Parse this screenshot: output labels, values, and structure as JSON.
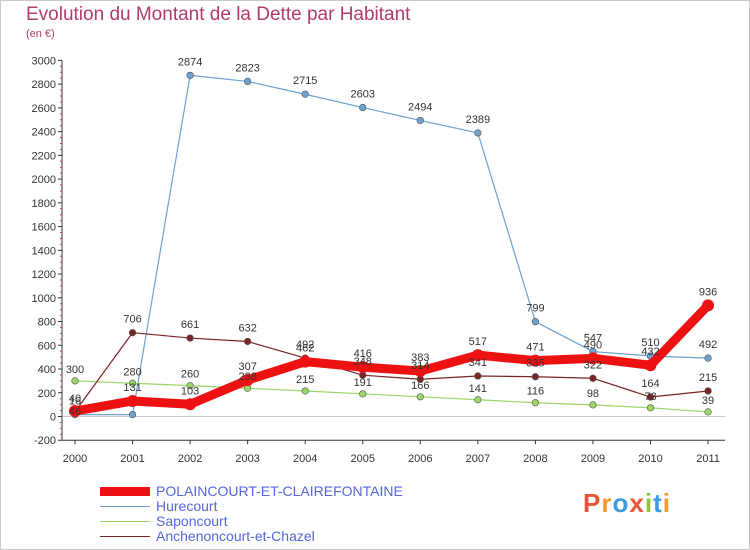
{
  "title": "Evolution du Montant de la Dette par Habitant",
  "subtitle": "(en €)",
  "logo": {
    "text": "Proxiti",
    "colors": [
      "#e8563a",
      "#f39a2b",
      "#3b9be0",
      "#e8563a",
      "#8cc63f",
      "#3b9be0",
      "#f39a2b"
    ]
  },
  "chart_data": {
    "type": "line",
    "title": "Evolution du Montant de la Dette par Habitant",
    "ylabel": "(en €)",
    "xlabel": "",
    "ylim": [
      -200,
      3000
    ],
    "yticks": [
      -200,
      0,
      200,
      400,
      600,
      800,
      1000,
      1200,
      1400,
      1600,
      1800,
      2000,
      2200,
      2400,
      2600,
      2800,
      3000
    ],
    "grid": false,
    "x": [
      "2000",
      "2001",
      "2002",
      "2003",
      "2004",
      "2005",
      "2006",
      "2007",
      "2008",
      "2009",
      "2010",
      "2011"
    ],
    "series": [
      {
        "name": "POLAINCOURT-ET-CLAIREFONTAINE",
        "color": "#ee1111",
        "values": [
          46,
          131,
          103,
          307,
          462,
          416,
          383,
          517,
          471,
          490,
          432,
          936
        ],
        "labels": [
          "46",
          "131",
          "103",
          "307",
          "462",
          "416",
          "383",
          "517",
          "471",
          "490",
          "432",
          "936"
        ]
      },
      {
        "name": "Hurecourt",
        "color": "#6ea2cf",
        "values": [
          16,
          16,
          2874,
          2823,
          2715,
          2603,
          2494,
          2389,
          799,
          547,
          510,
          492
        ],
        "labels": [
          "16",
          "",
          "2874",
          "2823",
          "2715",
          "2603",
          "2494",
          "2389",
          "799",
          "547",
          "510",
          "492"
        ]
      },
      {
        "name": "Saponcourt",
        "color": "#9ad668",
        "values": [
          300,
          280,
          260,
          238,
          215,
          191,
          166,
          141,
          116,
          98,
          73,
          39
        ],
        "labels": [
          "300",
          "280",
          "260",
          "238",
          "215",
          "191",
          "166",
          "141",
          "116",
          "98",
          "73",
          "39"
        ]
      },
      {
        "name": "Anchenoncourt-et-Chazel",
        "color": "#7a2424",
        "values": [
          40,
          706,
          661,
          632,
          492,
          348,
          314,
          341,
          335,
          322,
          164,
          215
        ],
        "labels": [
          "40",
          "706",
          "661",
          "632",
          "492",
          "348",
          "314",
          "341",
          "335",
          "322",
          "164",
          "215"
        ]
      }
    ],
    "legend": "bottom-left"
  }
}
